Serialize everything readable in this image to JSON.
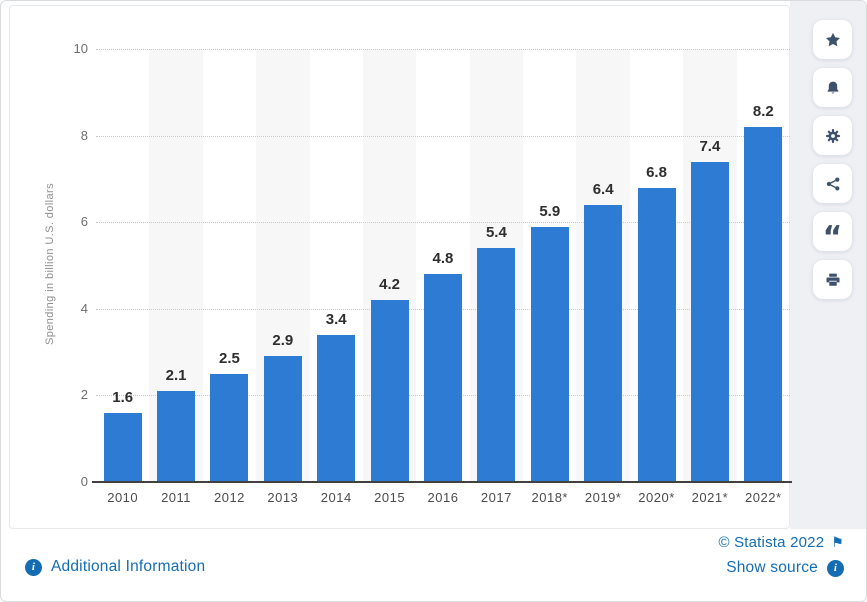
{
  "chart_data": {
    "type": "bar",
    "categories": [
      "2010",
      "2011",
      "2012",
      "2013",
      "2014",
      "2015",
      "2016",
      "2017",
      "2018*",
      "2019*",
      "2020*",
      "2021*",
      "2022*"
    ],
    "values": [
      1.6,
      2.1,
      2.5,
      2.9,
      3.4,
      4.2,
      4.8,
      5.4,
      5.9,
      6.4,
      6.8,
      7.4,
      8.2
    ],
    "title": "",
    "xlabel": "",
    "ylabel": "Spending in billion U.S. dollars",
    "ylim": [
      0,
      10
    ],
    "yticks": [
      0,
      2,
      4,
      6,
      8,
      10
    ],
    "grid": "dotted-horizontal",
    "legend": null,
    "bar_color": "#2d7bd2"
  },
  "toolbar": {
    "buttons": [
      {
        "name": "favorite",
        "icon": "star-icon"
      },
      {
        "name": "notifications",
        "icon": "bell-icon"
      },
      {
        "name": "settings",
        "icon": "gear-icon"
      },
      {
        "name": "share",
        "icon": "share-icon"
      },
      {
        "name": "cite",
        "icon": "quote-icon"
      },
      {
        "name": "print",
        "icon": "print-icon"
      }
    ]
  },
  "footer": {
    "additional_information": "Additional Information",
    "copyright": "© Statista 2022",
    "show_source": "Show source"
  },
  "icons": {
    "quote": "“",
    "flag": "⚑",
    "info": "i"
  },
  "colors": {
    "bar": "#2d7bd2",
    "link": "#146db3",
    "toolbar_icon": "#3d506c",
    "strip_background": "#eef0f4",
    "stripe": "#f7f7f8"
  }
}
